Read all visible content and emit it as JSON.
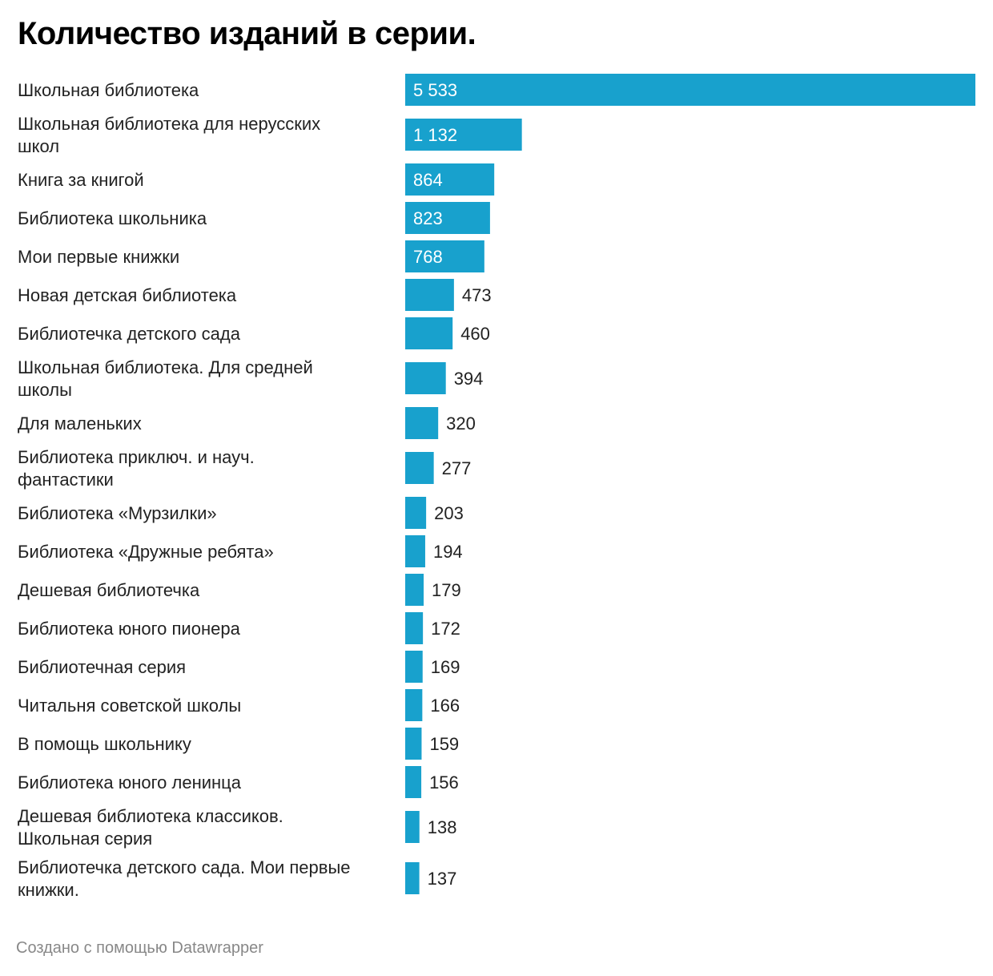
{
  "chart_data": {
    "type": "bar",
    "orientation": "horizontal",
    "title": "Количество изданий в серии.",
    "bar_color": "#18a1cd",
    "label_inside_color": "#ffffff",
    "label_outside_color": "#222222",
    "categories": [
      [
        "Школьная библиотека"
      ],
      [
        "Школьная библиотека для нерусских",
        "школ"
      ],
      [
        "Книга за книгой"
      ],
      [
        "Библиотека школьника"
      ],
      [
        "Мои первые книжки"
      ],
      [
        "Новая детская библиотека"
      ],
      [
        "Библиотечка детского сада"
      ],
      [
        "Школьная библиотека. Для средней",
        "школы"
      ],
      [
        "Для маленьких"
      ],
      [
        "Библиотека приключ. и науч.",
        "фантастики"
      ],
      [
        "Библиотека «Мурзилки»"
      ],
      [
        "Библиотека «Дружные ребята»"
      ],
      [
        "Дешевая библиотечка"
      ],
      [
        "Библиотека юного пионера"
      ],
      [
        "Библиотечная серия"
      ],
      [
        "Читальня советской школы"
      ],
      [
        "В помощь школьнику"
      ],
      [
        "Библиотека юного ленинца"
      ],
      [
        "Дешевая библиотека классиков.",
        "Школьная серия"
      ],
      [
        "Библиотечка детского сада. Мои первые",
        "книжки."
      ]
    ],
    "values": [
      5533,
      1132,
      864,
      823,
      768,
      473,
      460,
      394,
      320,
      277,
      203,
      194,
      179,
      172,
      169,
      166,
      159,
      156,
      138,
      137
    ],
    "value_labels": [
      "5 533",
      "1 132",
      "864",
      "823",
      "768",
      "473",
      "460",
      "394",
      "320",
      "277",
      "203",
      "194",
      "179",
      "172",
      "169",
      "166",
      "159",
      "156",
      "138",
      "137"
    ],
    "xlim": [
      0,
      5533
    ]
  },
  "footer": "Создано с помощью Datawrapper"
}
